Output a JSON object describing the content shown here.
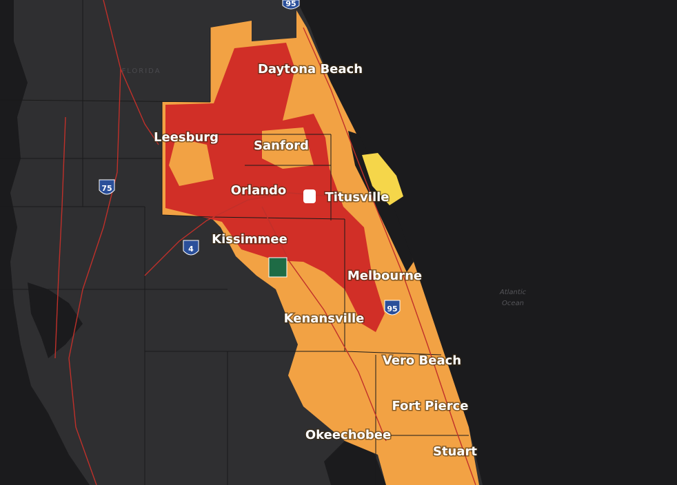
{
  "state_label": "FLORIDA",
  "cities": [
    "Daytona Beach",
    "Leesburg",
    "Sanford",
    "Orlando",
    "Titusville",
    "Kissimmee",
    "Melbourne",
    "Kenansville",
    "Vero Beach",
    "Fort Pierce",
    "Okeechobee",
    "Stuart"
  ],
  "water_label": [
    "Atlantic",
    "Ocean"
  ],
  "shields": [
    "95",
    "75",
    "4",
    "95"
  ]
}
